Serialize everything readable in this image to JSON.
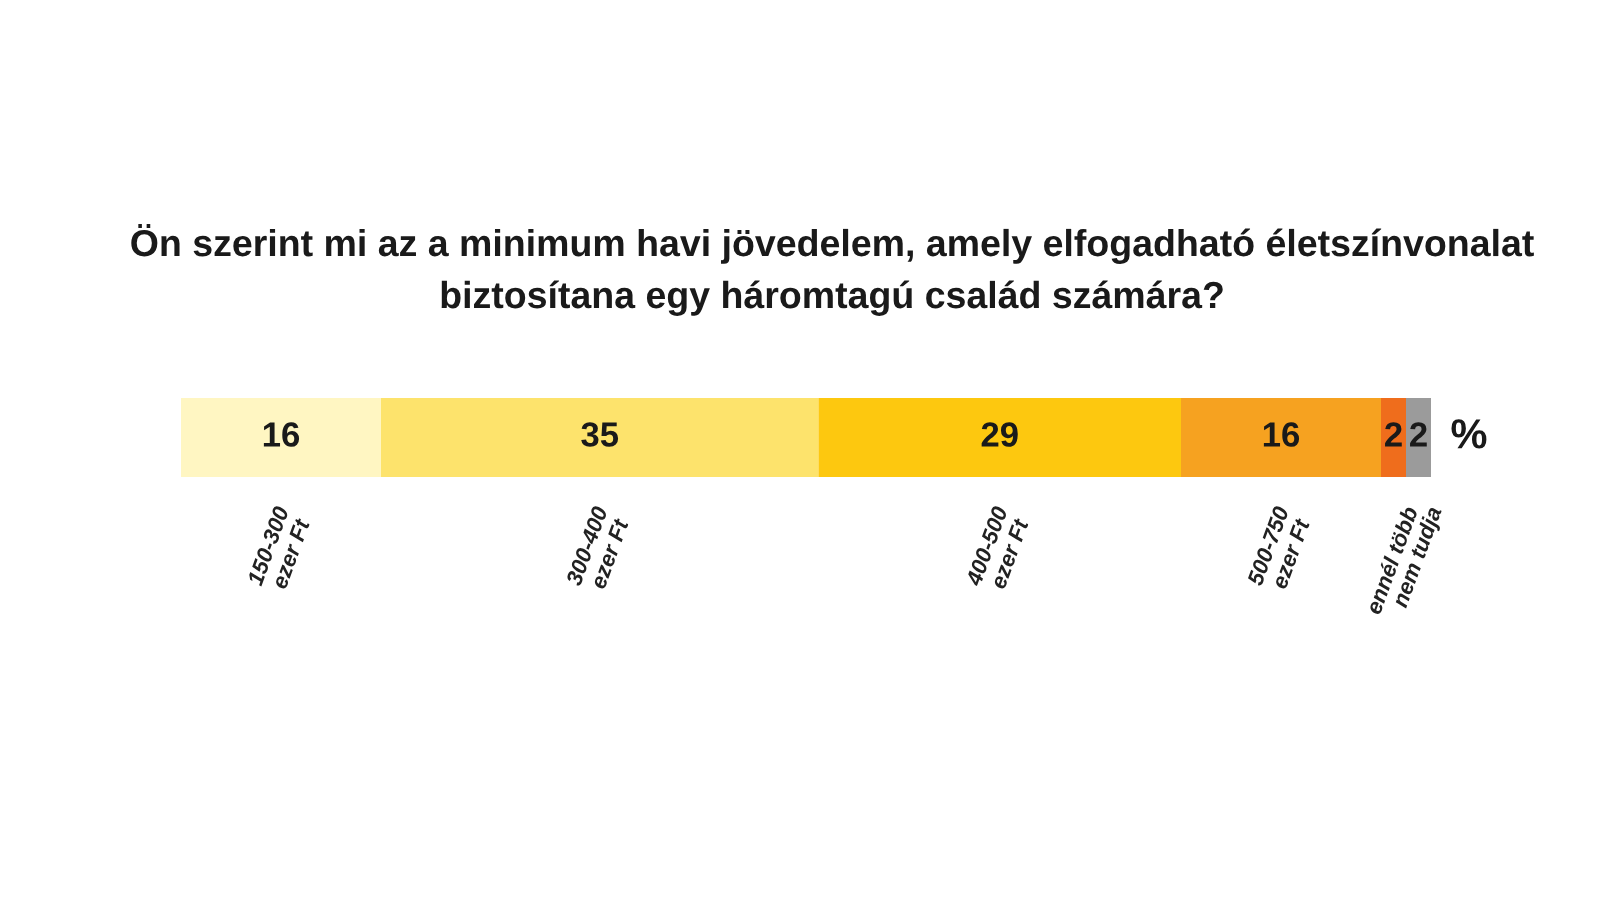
{
  "chart_data": {
    "type": "bar",
    "orientation": "horizontal",
    "stacked": true,
    "title": "Ön szerint mi az a minimum havi jövedelem, amely elfogadható életszínvonalat biztosítana egy háromtagú család számára?",
    "categories": [
      null
    ],
    "series": [
      {
        "name": "150-300\nezer Ft",
        "color": "#fff6c2",
        "values": [
          16
        ]
      },
      {
        "name": "300-400\nezer Ft",
        "color": "#fde36c",
        "values": [
          35
        ]
      },
      {
        "name": "400-500\nezer Ft",
        "color": "#fdc80f",
        "values": [
          29
        ]
      },
      {
        "name": "500-750\nezer Ft",
        "color": "#f6a220",
        "values": [
          16
        ]
      },
      {
        "name": "ennél több",
        "color": "#ef6d1c",
        "values": [
          2
        ]
      },
      {
        "name": "nem tudja",
        "color": "#9b9b9b",
        "values": [
          2
        ]
      }
    ],
    "data_labels": true,
    "tick_labels": false,
    "annotations": [
      "%"
    ]
  }
}
